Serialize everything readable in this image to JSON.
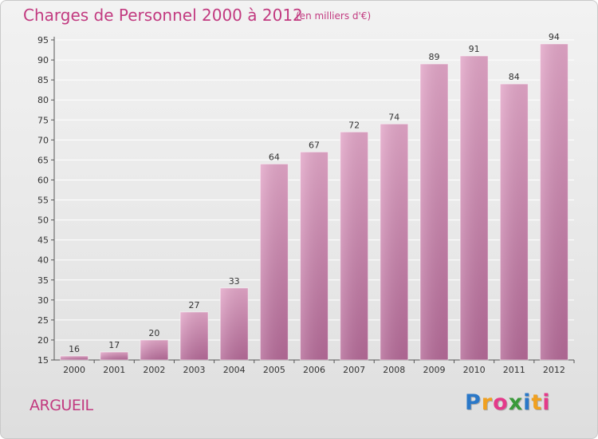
{
  "chart_data": {
    "type": "bar",
    "title": "Charges de Personnel 2000 à 2012",
    "subtitle": "(en milliers d'€)",
    "categories": [
      "2000",
      "2001",
      "2002",
      "2003",
      "2004",
      "2005",
      "2006",
      "2007",
      "2008",
      "2009",
      "2010",
      "2011",
      "2012"
    ],
    "values": [
      16,
      17,
      20,
      27,
      33,
      64,
      67,
      72,
      74,
      89,
      91,
      84,
      94
    ],
    "ylim": [
      15,
      95
    ],
    "yticks": [
      15,
      20,
      25,
      30,
      35,
      40,
      45,
      50,
      55,
      60,
      65,
      70,
      75,
      80,
      85,
      90,
      95
    ],
    "grid": true,
    "bar_color": "#d88ab5",
    "grid_color": "#ffffff"
  },
  "footer": {
    "location": "ARGUEIL",
    "logo_letters": [
      "P",
      "r",
      "o",
      "x",
      "i",
      "t",
      "i"
    ],
    "logo_colors": [
      "#2a78c8",
      "#f0a020",
      "#e43a8a",
      "#3a9a3a",
      "#2a78c8",
      "#f0a020",
      "#e43a8a"
    ]
  },
  "colors": {
    "accent": "#c23a80"
  }
}
